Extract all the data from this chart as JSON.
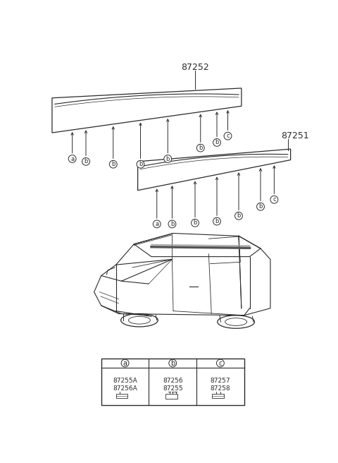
{
  "bg_color": "#ffffff",
  "fig_width": 4.8,
  "fig_height": 6.56,
  "dpi": 100,
  "part_87252_label": "87252",
  "part_87251_label": "87251",
  "legend_parts_a": "87255A\n87256A",
  "legend_parts_b": "87256\n87255",
  "legend_parts_c": "87257\n87258",
  "line_color": "#2a2a2a"
}
